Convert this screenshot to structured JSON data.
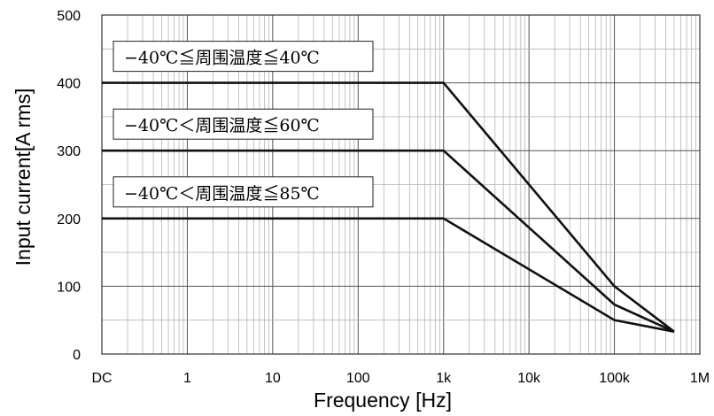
{
  "chart_data": {
    "type": "line",
    "xlabel": "Frequency [Hz]",
    "ylabel": "Input current[A rms]",
    "x_scale": "log",
    "x_ticks": [
      {
        "label": "DC",
        "value": 0.1
      },
      {
        "label": "1",
        "value": 1
      },
      {
        "label": "10",
        "value": 10
      },
      {
        "label": "100",
        "value": 100
      },
      {
        "label": "1k",
        "value": 1000
      },
      {
        "label": "10k",
        "value": 10000
      },
      {
        "label": "100k",
        "value": 100000
      },
      {
        "label": "1M",
        "value": 1000000
      }
    ],
    "y_ticks": [
      0,
      100,
      200,
      300,
      400,
      500
    ],
    "ylim": [
      0,
      500
    ],
    "grid": true,
    "line_color": "#111111",
    "grid_color": "#b5b5b5",
    "series": [
      {
        "name": "−40℃≦周围温度≦40℃",
        "points": [
          {
            "x": 0.1,
            "y": 400
          },
          {
            "x": 1000,
            "y": 400
          },
          {
            "x": 100000,
            "y": 100
          },
          {
            "x": 500000,
            "y": 33
          }
        ]
      },
      {
        "name": "−40℃＜周围温度≦60℃",
        "points": [
          {
            "x": 0.1,
            "y": 300
          },
          {
            "x": 1000,
            "y": 300
          },
          {
            "x": 100000,
            "y": 73
          },
          {
            "x": 500000,
            "y": 33
          }
        ]
      },
      {
        "name": "−40℃＜周围温度≦85℃",
        "points": [
          {
            "x": 0.1,
            "y": 200
          },
          {
            "x": 1000,
            "y": 200
          },
          {
            "x": 100000,
            "y": 50
          },
          {
            "x": 500000,
            "y": 33
          }
        ]
      }
    ]
  }
}
